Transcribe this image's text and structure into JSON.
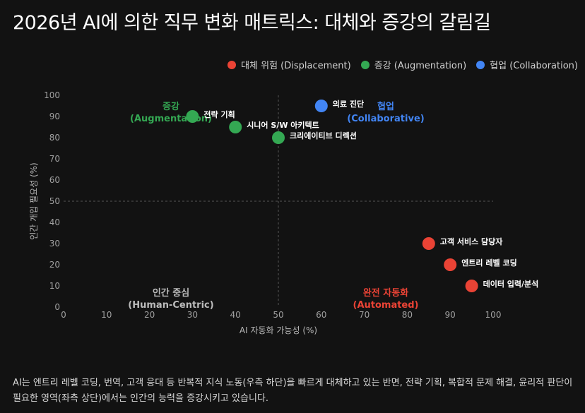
{
  "title": "2026년 AI에 의한 직무 변화 매트릭스: 대체와 증강의 갈림길",
  "legend": [
    {
      "label": "대체 위험 (Displacement)",
      "color": "#ea4335"
    },
    {
      "label": "증강 (Augmentation)",
      "color": "#34a853"
    },
    {
      "label": "협업 (Collaboration)",
      "color": "#4285f4"
    }
  ],
  "caption": "AI는 엔트리 레벨 코딩, 번역, 고객 응대 등 반복적 지식 노동(우측 하단)을 빠르게 대체하고 있는 반면, 전략 기획, 복합적 문제 해결, 윤리적 판단이 필요한 영역(좌측 상단)에서는 인간의 능력을 증강시키고 있습니다.",
  "chart_data": {
    "type": "scatter",
    "xlabel": "AI 자동화 가능성 (%)",
    "ylabel": "인간 개입 필요성 (%)",
    "xlim": [
      0,
      100
    ],
    "ylim": [
      0,
      100
    ],
    "xticks": [
      0,
      10,
      20,
      30,
      40,
      50,
      60,
      70,
      80,
      90,
      100
    ],
    "yticks": [
      0,
      10,
      20,
      30,
      40,
      50,
      60,
      70,
      80,
      90,
      100
    ],
    "grid": false,
    "reference_lines": {
      "x": 50,
      "y": 50
    },
    "legend_position": "top-right",
    "series": [
      {
        "name": "대체 위험 (Displacement)",
        "color": "#ea4335",
        "points": [
          {
            "label": "고객 서비스 담당자",
            "x": 85,
            "y": 30
          },
          {
            "label": "엔트리 레벨 코딩",
            "x": 90,
            "y": 20
          },
          {
            "label": "데이터 입력/분석",
            "x": 95,
            "y": 10
          }
        ]
      },
      {
        "name": "증강 (Augmentation)",
        "color": "#34a853",
        "points": [
          {
            "label": "전략 기획",
            "x": 30,
            "y": 90
          },
          {
            "label": "시니어 S/W 아키텍트",
            "x": 40,
            "y": 85
          },
          {
            "label": "크리에이티브 디렉션",
            "x": 50,
            "y": 80
          }
        ]
      },
      {
        "name": "협업 (Collaboration)",
        "color": "#4285f4",
        "points": [
          {
            "label": "의료 진단",
            "x": 60,
            "y": 95
          }
        ]
      }
    ],
    "quadrant_labels": [
      {
        "line1": "증강",
        "line2": "(Augmentation)",
        "x": 25,
        "y": 93,
        "color": "#34a853"
      },
      {
        "line1": "협업",
        "line2": "(Collaborative)",
        "x": 75,
        "y": 93,
        "color": "#4285f4"
      },
      {
        "line1": "인간 중심",
        "line2": "(Human-Centric)",
        "x": 25,
        "y": 5,
        "color": "#bbbbbb"
      },
      {
        "line1": "완전 자동화",
        "line2": "(Automated)",
        "x": 75,
        "y": 5,
        "color": "#ea4335"
      }
    ]
  }
}
